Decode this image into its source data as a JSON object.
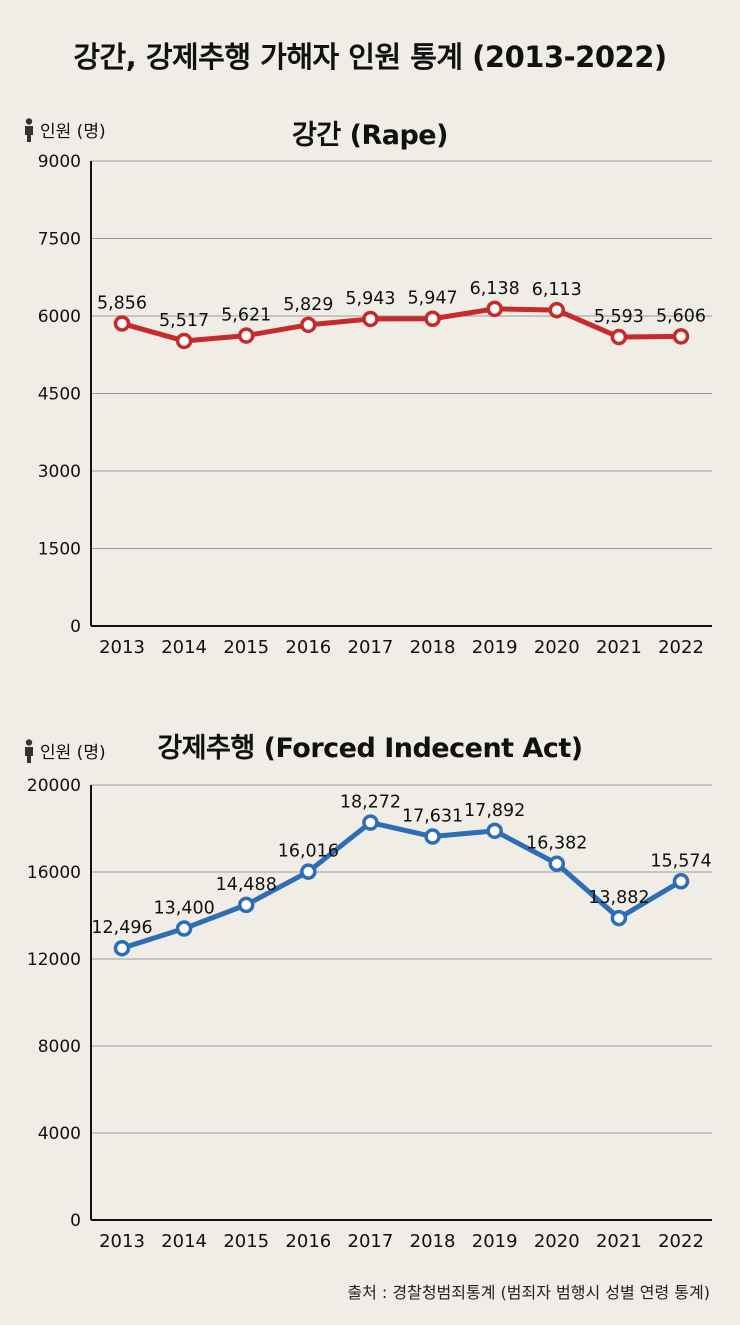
{
  "title": "강간, 강제추행 가해자 인원 통계 (2013-2022)",
  "source": "출처 : 경찰청범죄통계 (범죄자 범행시 성별 연령 통계)",
  "chart_data": [
    {
      "type": "line",
      "title": "강간 (Rape)",
      "ylabel": "인원 (명)",
      "x": [
        "2013",
        "2014",
        "2015",
        "2016",
        "2017",
        "2018",
        "2019",
        "2020",
        "2021",
        "2022"
      ],
      "values": [
        5856,
        5517,
        5621,
        5829,
        5943,
        5947,
        6138,
        6113,
        5593,
        5606
      ],
      "value_labels": [
        "5,856",
        "5,517",
        "5,621",
        "5,829",
        "5,943",
        "5,947",
        "6,138",
        "6,113",
        "5,593",
        "5,606"
      ],
      "ylim": [
        0,
        9000
      ],
      "yticks": [
        "0",
        "1500",
        "3000",
        "4500",
        "6000",
        "7500",
        "9000"
      ],
      "grid": true,
      "color": "#c62a2a"
    },
    {
      "type": "line",
      "title": "강제추행 (Forced Indecent Act)",
      "ylabel": "인원 (명)",
      "x": [
        "2013",
        "2014",
        "2015",
        "2016",
        "2017",
        "2018",
        "2019",
        "2020",
        "2021",
        "2022"
      ],
      "values": [
        12496,
        13400,
        14488,
        16016,
        18272,
        17631,
        17892,
        16382,
        13882,
        15574
      ],
      "value_labels": [
        "12,496",
        "13,400",
        "14,488",
        "16,016",
        "18,272",
        "17,631",
        "17,892",
        "16,382",
        "13,882",
        "15,574"
      ],
      "ylim": [
        0,
        20000
      ],
      "yticks": [
        "0",
        "4000",
        "8000",
        "12000",
        "16000",
        "20000"
      ],
      "grid": true,
      "color": "#2f6db5"
    }
  ]
}
